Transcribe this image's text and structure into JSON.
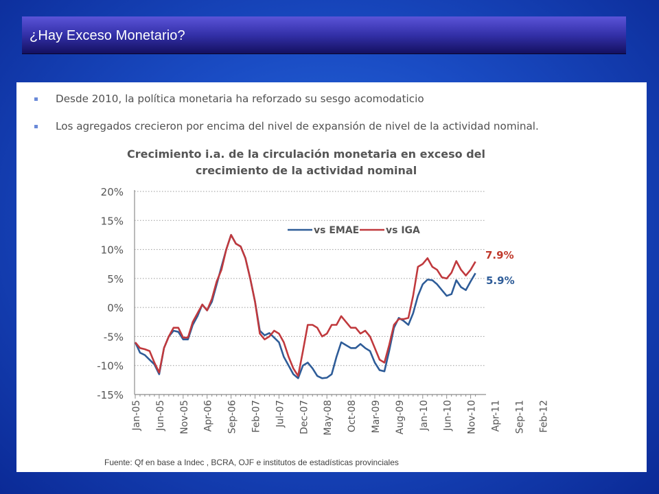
{
  "slide": {
    "title": "¿Hay Exceso Monetario?",
    "bullets": [
      "Desde 2010, la política monetaria ha reforzado su sesgo acomodaticio",
      "Los agregados crecieron por encima del nivel de expansión de nivel de la actividad nominal."
    ],
    "source": "Fuente: Qf en base a Indec , BCRA, OJF e institutos de estadísticas provinciales"
  },
  "colors": {
    "emae": "#2e5c98",
    "iga": "#c0393d",
    "label_red": "#c0392b",
    "label_blue": "#2e5c98"
  },
  "chart_data": {
    "type": "line",
    "title": "Crecimiento i.a. de la circulación monetaria en exceso del crecimiento de la actividad nominal",
    "title_lines": [
      "Crecimiento i.a. de la circulación monetaria en exceso del",
      "crecimiento de la actividad nominal"
    ],
    "xlabel": "",
    "ylabel": "",
    "ylim": [
      -15,
      20
    ],
    "y_ticks": [
      "20%",
      "15%",
      "10%",
      "5%",
      "0%",
      "-5%",
      "-10%",
      "-15%"
    ],
    "x_tick_labels": [
      "Jan-05",
      "Jun-05",
      "Nov-05",
      "Apr-06",
      "Sep-06",
      "Feb-07",
      "Jul-07",
      "Dec-07",
      "May-08",
      "Oct-08",
      "Mar-09",
      "Aug-09",
      "Jan-10",
      "Jun-10",
      "Nov-10",
      "Apr-11",
      "Sep-11",
      "Feb-12"
    ],
    "grid": true,
    "legend": "top-center",
    "end_labels": [
      "7.9%",
      "5.9%"
    ],
    "series": [
      {
        "name": "vs EMAE",
        "values": [
          -6.0,
          -7.8,
          -8.2,
          -9.0,
          -9.8,
          -11.5,
          -7.0,
          -5.0,
          -4.0,
          -4.2,
          -5.5,
          -5.5,
          -3.0,
          -1.5,
          0.5,
          -0.5,
          1.0,
          4.0,
          7.0,
          10.0,
          12.5,
          11.0,
          10.5,
          8.5,
          5.0,
          1.0,
          -4.0,
          -4.8,
          -4.4,
          -5.2,
          -6.0,
          -8.5,
          -10.0,
          -11.5,
          -12.2,
          -10.0,
          -9.5,
          -10.5,
          -11.8,
          -12.2,
          -12.1,
          -11.5,
          -8.5,
          -6.0,
          -6.5,
          -7.0,
          -7.0,
          -6.3,
          -7.0,
          -7.5,
          -9.5,
          -10.8,
          -11.0,
          -7.5,
          -3.5,
          -1.8,
          -2.3,
          -3.0,
          -1.0,
          2.0,
          4.0,
          4.8,
          4.7,
          4.0,
          3.0,
          2.0,
          2.3,
          4.7,
          3.5,
          3.0,
          4.5,
          5.9
        ]
      },
      {
        "name": "vs IGA",
        "values": [
          -6.0,
          -7.0,
          -7.2,
          -7.5,
          -9.5,
          -11.2,
          -7.0,
          -5.0,
          -3.5,
          -3.5,
          -5.2,
          -5.2,
          -2.5,
          -1.0,
          0.5,
          -0.5,
          1.5,
          4.5,
          6.5,
          10.0,
          12.5,
          11.0,
          10.5,
          8.5,
          5.0,
          1.0,
          -4.5,
          -5.5,
          -5.0,
          -4.0,
          -4.5,
          -6.0,
          -8.5,
          -10.5,
          -11.8,
          -7.5,
          -3.0,
          -3.0,
          -3.5,
          -5.0,
          -4.5,
          -3.0,
          -3.0,
          -1.5,
          -2.5,
          -3.5,
          -3.5,
          -4.5,
          -4.0,
          -5.0,
          -7.0,
          -9.0,
          -9.5,
          -6.5,
          -3.0,
          -2.0,
          -2.0,
          -1.8,
          2.0,
          7.0,
          7.5,
          8.5,
          7.0,
          6.5,
          5.2,
          5.0,
          6.0,
          8.0,
          6.5,
          5.5,
          6.5,
          7.9
        ]
      }
    ]
  }
}
